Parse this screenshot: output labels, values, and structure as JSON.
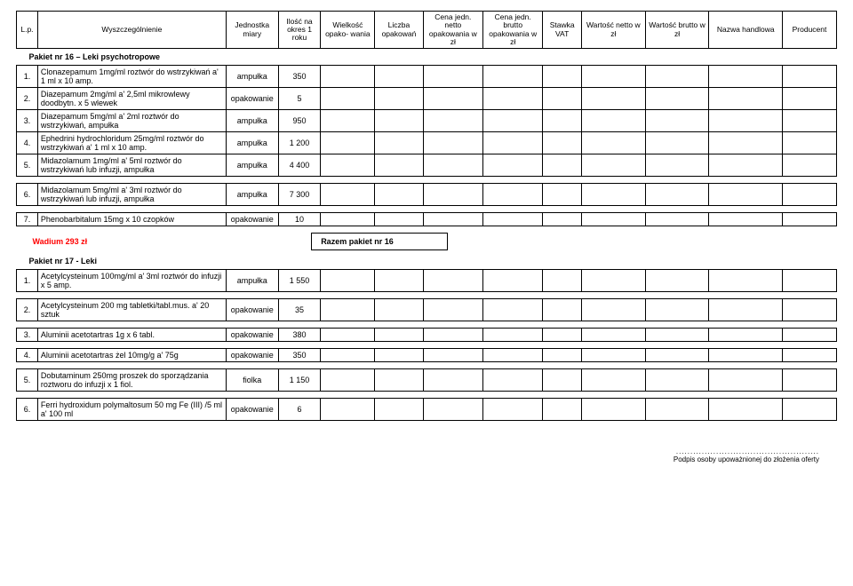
{
  "headers": {
    "lp": "L.p.",
    "spec": "Wyszczególnienie",
    "unit": "Jednostka miary",
    "qty1": "Ilość na okres 1 roku",
    "pkg": "Wielkość opako- wania",
    "cnt": "Liczba opakowań",
    "netto": "Cena jedn. netto opakowania w zł",
    "brutto": "Cena jedn. brutto opakowania w zł",
    "vat": "Stawka VAT",
    "valnet": "Wartość netto w zł",
    "valbrut": "Wartość brutto w zł",
    "name": "Nazwa handlowa",
    "prod": "Producent"
  },
  "pakiet16": {
    "title": "Pakiet nr 16 – Leki psychotropowe",
    "rows": [
      {
        "lp": "1.",
        "spec": "Clonazepamum 1mg/ml roztwór do wstrzykiwań a' 1 ml x 10 amp.",
        "unit": "ampułka",
        "qty": "350"
      },
      {
        "lp": "2.",
        "spec": "Diazepamum 2mg/ml a' 2,5ml mikrowlewy doodbytn. x 5 wlewek",
        "unit": "opakowanie",
        "qty": "5"
      },
      {
        "lp": "3.",
        "spec": "Diazepamum 5mg/ml a' 2ml roztwór do wstrzykiwań, ampułka",
        "unit": "ampułka",
        "qty": "950"
      },
      {
        "lp": "4.",
        "spec": "Ephedrini hydrochloridum 25mg/ml roztwór do wstrzykiwań a' 1 ml x 10 amp.",
        "unit": "ampułka",
        "qty": "1 200"
      },
      {
        "lp": "5.",
        "spec": "Midazolamum 1mg/ml a' 5ml roztwór do wstrzykiwań lub infuzji, ampułka",
        "unit": "ampułka",
        "qty": "4 400"
      },
      {
        "lp": "6.",
        "spec": "Midazolamum 5mg/ml a' 3ml roztwór do wstrzykiwań lub infuzji, ampułka",
        "unit": "ampułka",
        "qty": "7 300"
      },
      {
        "lp": "7.",
        "spec": "Phenobarbitalum 15mg x 10 czopków",
        "unit": "opakowanie",
        "qty": "10"
      }
    ],
    "wadium": "Wadium  293 zł",
    "razem": "Razem pakiet nr 16"
  },
  "pakiet17": {
    "title": "Pakiet nr 17  - Leki",
    "rows": [
      {
        "lp": "1.",
        "spec": "Acetylcysteinum 100mg/ml a' 3ml roztwór do infuzji x 5 amp.",
        "unit": "ampułka",
        "qty": "1 550"
      },
      {
        "lp": "2.",
        "spec": "Acetylcysteinum 200 mg tabletki/tabl.mus. a' 20 sztuk",
        "unit": "opakowanie",
        "qty": "35"
      },
      {
        "lp": "3.",
        "spec": "Aluminii acetotartras 1g x 6 tabl.",
        "unit": "opakowanie",
        "qty": "380"
      },
      {
        "lp": "4.",
        "spec": "Aluminii acetotartras żel 10mg/g a' 75g",
        "unit": "opakowanie",
        "qty": "350"
      },
      {
        "lp": "5.",
        "spec": "Dobutaminum 250mg proszek do sporządzania roztworu do infuzji x 1 fiol.",
        "unit": "fiolka",
        "qty": "1 150"
      },
      {
        "lp": "6.",
        "spec": "Ferri hydroxidum polymaltosum 50 mg Fe (III) /5 ml  a' 100 ml",
        "unit": "opakowanie",
        "qty": "6"
      }
    ]
  },
  "footer": {
    "dots": "..................................................",
    "caption": "Podpis osoby upoważnionej do złożenia oferty"
  }
}
